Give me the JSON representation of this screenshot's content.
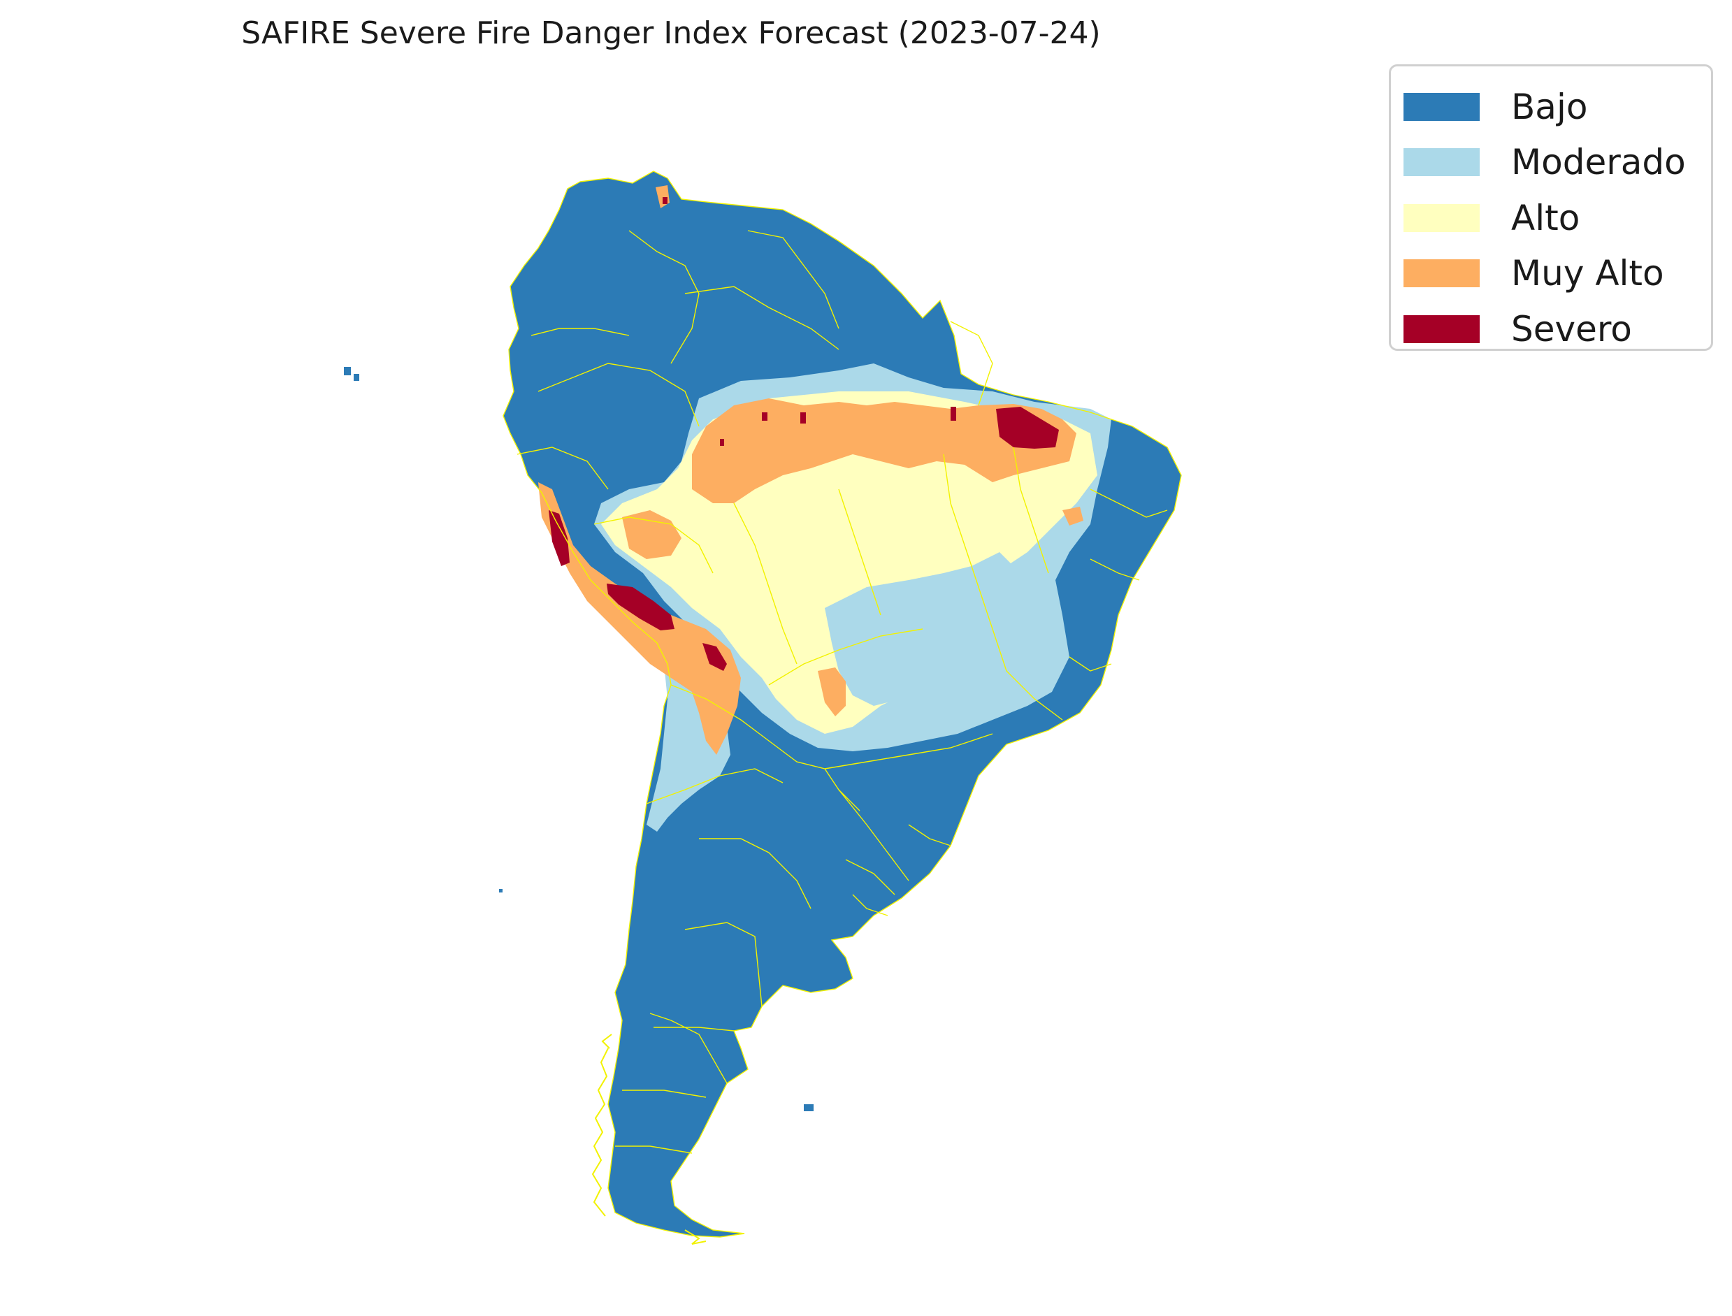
{
  "title": "SAFIRE Severe Fire Danger Index Forecast (2023-07-24)",
  "legend": [
    {
      "label": "Bajo",
      "color": "#2c7bb6"
    },
    {
      "label": "Moderado",
      "color": "#abd9e9"
    },
    {
      "label": "Alto",
      "color": "#ffffbf"
    },
    {
      "label": "Muy Alto",
      "color": "#fdae61"
    },
    {
      "label": "Severo",
      "color": "#a50026"
    }
  ],
  "border_color": "#f2f200"
}
